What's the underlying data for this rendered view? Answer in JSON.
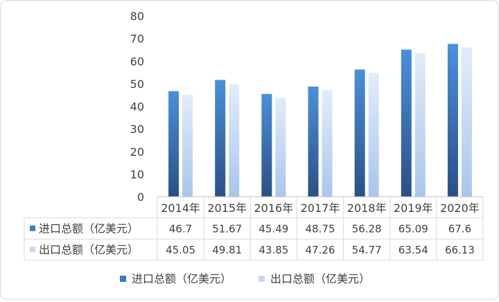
{
  "chart_data": {
    "type": "bar",
    "categories": [
      "2014年",
      "2015年",
      "2016年",
      "2017年",
      "2018年",
      "2019年",
      "2020年"
    ],
    "series": [
      {
        "name": "进口总额（亿美元）",
        "values": [
          46.7,
          51.67,
          45.49,
          48.75,
          56.28,
          65.09,
          67.6
        ],
        "labels": [
          "46.7",
          "51.67",
          "45.49",
          "48.75",
          "56.28",
          "65.09",
          "67.6"
        ],
        "color": "#3a7cc6"
      },
      {
        "name": "出口总额（亿美元）",
        "values": [
          45.05,
          49.81,
          43.85,
          47.26,
          54.77,
          63.54,
          66.13
        ],
        "labels": [
          "45.05",
          "49.81",
          "43.85",
          "47.26",
          "54.77",
          "63.54",
          "66.13"
        ],
        "color": "#c6d9f2"
      }
    ],
    "yticks": [
      "0",
      "10",
      "20",
      "30",
      "40",
      "50",
      "60",
      "70",
      "80"
    ],
    "ylim": [
      0,
      80
    ],
    "grid": false,
    "data_table": true,
    "legend_position": "bottom"
  }
}
